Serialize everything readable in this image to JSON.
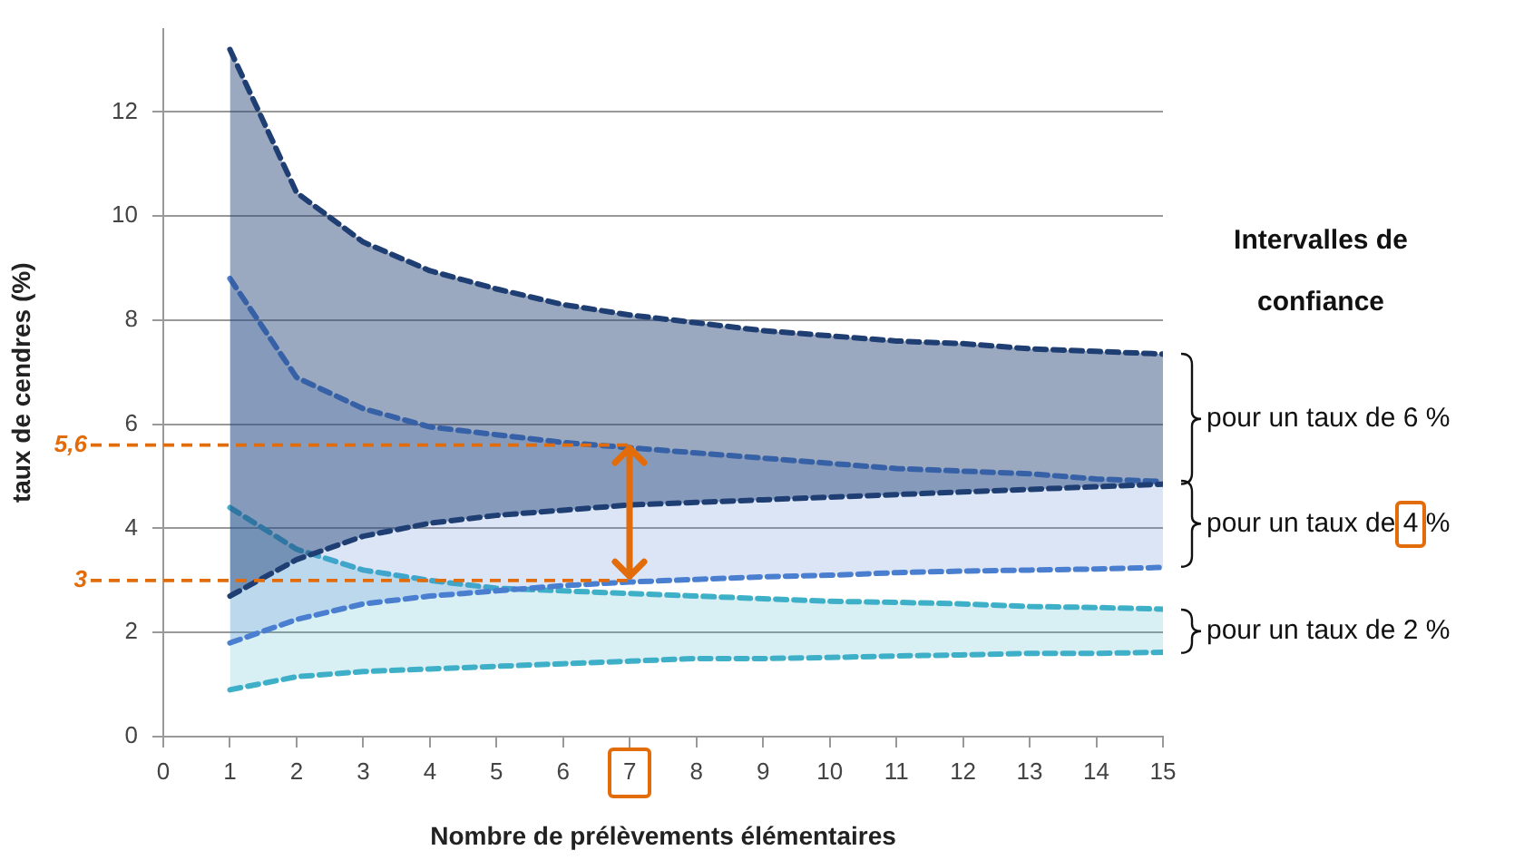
{
  "chart_data": {
    "type": "line",
    "xlabel": "Nombre de prélèvements élémentaires",
    "ylabel": "taux de cendres (%)",
    "x": [
      1,
      2,
      3,
      4,
      5,
      6,
      7,
      8,
      9,
      10,
      11,
      12,
      13,
      14,
      15
    ],
    "series": [
      {
        "name": "pour un taux de 6 %",
        "color": "#1f3f73",
        "values": [
          13.2,
          10.45,
          9.5,
          8.95,
          8.6,
          8.3,
          8.1,
          7.95,
          7.8,
          7.7,
          7.6,
          7.55,
          7.45,
          7.4,
          7.35
        ],
        "upper": [
          13.2,
          10.45,
          9.5,
          8.95,
          8.6,
          8.3,
          8.1,
          7.95,
          7.8,
          7.7,
          7.6,
          7.55,
          7.45,
          7.4,
          7.35
        ],
        "lower": [
          2.7,
          3.4,
          3.85,
          4.1,
          4.25,
          4.35,
          4.45,
          4.5,
          4.55,
          4.6,
          4.65,
          4.7,
          4.75,
          4.8,
          4.85
        ]
      },
      {
        "color": "#1f3f73",
        "values": [
          2.7,
          3.4,
          3.85,
          4.1,
          4.25,
          4.35,
          4.45,
          4.5,
          4.55,
          4.6,
          4.65,
          4.7,
          4.75,
          4.8,
          4.85
        ]
      },
      {
        "name": "pour un taux de 4 %",
        "color": "#4a7fd0",
        "values": [
          8.8,
          6.9,
          6.3,
          5.95,
          5.8,
          5.65,
          5.55,
          5.45,
          5.35,
          5.25,
          5.15,
          5.1,
          5.05,
          4.95,
          4.9
        ],
        "upper": [
          8.8,
          6.9,
          6.3,
          5.95,
          5.8,
          5.65,
          5.55,
          5.45,
          5.35,
          5.25,
          5.15,
          5.1,
          5.05,
          4.95,
          4.9
        ],
        "lower": [
          1.8,
          2.25,
          2.55,
          2.7,
          2.8,
          2.9,
          2.97,
          3.02,
          3.07,
          3.1,
          3.15,
          3.18,
          3.2,
          3.22,
          3.25
        ]
      },
      {
        "color": "#4a7fd0",
        "values": [
          1.8,
          2.25,
          2.55,
          2.7,
          2.8,
          2.9,
          2.97,
          3.02,
          3.07,
          3.1,
          3.15,
          3.18,
          3.2,
          3.22,
          3.25
        ]
      },
      {
        "name": "pour un taux de 2 %",
        "color": "#3eb0c8",
        "values": [
          4.4,
          3.6,
          3.2,
          3.0,
          2.85,
          2.8,
          2.75,
          2.7,
          2.65,
          2.6,
          2.58,
          2.55,
          2.5,
          2.48,
          2.45
        ],
        "upper": [
          4.4,
          3.6,
          3.2,
          3.0,
          2.85,
          2.8,
          2.75,
          2.7,
          2.65,
          2.6,
          2.58,
          2.55,
          2.5,
          2.48,
          2.45
        ],
        "lower": [
          0.9,
          1.15,
          1.25,
          1.3,
          1.35,
          1.4,
          1.45,
          1.5,
          1.5,
          1.52,
          1.55,
          1.57,
          1.6,
          1.6,
          1.62
        ]
      },
      {
        "color": "#3eb0c8",
        "values": [
          0.9,
          1.15,
          1.25,
          1.3,
          1.35,
          1.4,
          1.45,
          1.5,
          1.5,
          1.52,
          1.55,
          1.57,
          1.6,
          1.6,
          1.62
        ]
      }
    ],
    "xlim": [
      0,
      15
    ],
    "xticks": [
      0,
      1,
      2,
      3,
      4,
      5,
      6,
      7,
      8,
      9,
      10,
      11,
      12,
      13,
      14,
      15
    ],
    "ylim": [
      0,
      13.6
    ],
    "yticks": [
      0,
      2,
      4,
      6,
      8,
      10,
      12
    ],
    "grid": "y",
    "legend": false,
    "marker": "none",
    "line_style": "dashed",
    "ref_lines": [
      {
        "axis": "y",
        "value": 5.6,
        "label": "5,6",
        "color": "#e36c0a",
        "line_style": "dashed"
      },
      {
        "axis": "y",
        "value": 3,
        "label": "3",
        "color": "#e36c0a",
        "line_style": "dashed"
      }
    ],
    "annotations": [
      "Intervalles de confiance"
    ]
  }
}
